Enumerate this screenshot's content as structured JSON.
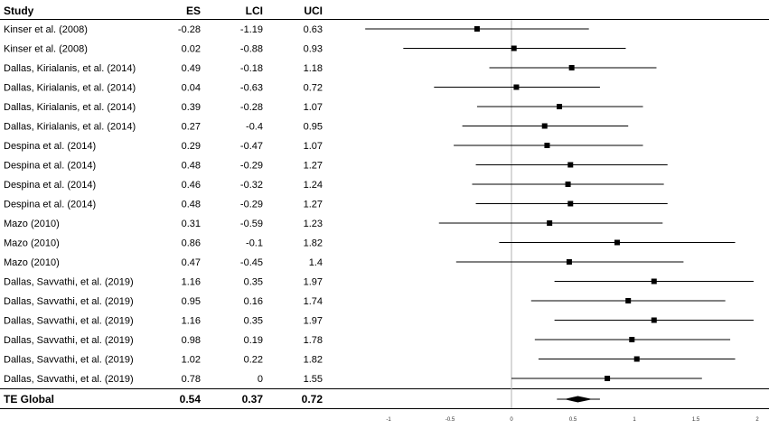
{
  "chart_data": {
    "type": "forest",
    "columns": [
      "Study",
      "ES",
      "LCI",
      "UCI"
    ],
    "rows": [
      {
        "study": "Kinser et al. (2008)",
        "es": "-0.28",
        "lci": "-1.19",
        "uci": "0.63"
      },
      {
        "study": "Kinser et al. (2008)",
        "es": "0.02",
        "lci": "-0.88",
        "uci": "0.93"
      },
      {
        "study": "Dallas, Kirialanis, et al. (2014)",
        "es": "0.49",
        "lci": "-0.18",
        "uci": "1.18"
      },
      {
        "study": "Dallas, Kirialanis, et al. (2014)",
        "es": "0.04",
        "lci": "-0.63",
        "uci": "0.72"
      },
      {
        "study": "Dallas, Kirialanis, et al. (2014)",
        "es": "0.39",
        "lci": "-0.28",
        "uci": "1.07"
      },
      {
        "study": "Dallas, Kirialanis, et al. (2014)",
        "es": "0.27",
        "lci": "-0.4",
        "uci": "0.95"
      },
      {
        "study": "Despina et al. (2014)",
        "es": "0.29",
        "lci": "-0.47",
        "uci": "1.07"
      },
      {
        "study": "Despina et al. (2014)",
        "es": "0.48",
        "lci": "-0.29",
        "uci": "1.27"
      },
      {
        "study": "Despina et al. (2014)",
        "es": "0.46",
        "lci": "-0.32",
        "uci": "1.24"
      },
      {
        "study": "Despina et al. (2014)",
        "es": "0.48",
        "lci": "-0.29",
        "uci": "1.27"
      },
      {
        "study": "Mazo (2010)",
        "es": "0.31",
        "lci": "-0.59",
        "uci": "1.23"
      },
      {
        "study": "Mazo (2010)",
        "es": "0.86",
        "lci": "-0.1",
        "uci": "1.82"
      },
      {
        "study": "Mazo (2010)",
        "es": "0.47",
        "lci": "-0.45",
        "uci": "1.4"
      },
      {
        "study": "Dallas, Savvathi, et al. (2019)",
        "es": "1.16",
        "lci": "0.35",
        "uci": "1.97"
      },
      {
        "study": "Dallas, Savvathi, et al. (2019)",
        "es": "0.95",
        "lci": "0.16",
        "uci": "1.74"
      },
      {
        "study": "Dallas, Savvathi, et al. (2019)",
        "es": "1.16",
        "lci": "0.35",
        "uci": "1.97"
      },
      {
        "study": "Dallas, Savvathi, et al. (2019)",
        "es": "0.98",
        "lci": "0.19",
        "uci": "1.78"
      },
      {
        "study": "Dallas, Savvathi, et al. (2019)",
        "es": "1.02",
        "lci": "0.22",
        "uci": "1.82"
      },
      {
        "study": "Dallas, Savvathi, et al. (2019)",
        "es": "0.78",
        "lci": "0",
        "uci": "1.55"
      }
    ],
    "total": {
      "study": "TE Global",
      "es": "0.54",
      "lci": "0.37",
      "uci": "0.72"
    },
    "x_ticks": [
      "-1",
      "-0.5",
      "0",
      "0.5",
      "1",
      "1.5",
      "2"
    ],
    "xlim": [
      -1,
      2
    ],
    "reference_line": 0,
    "colors": {
      "marker": "#000000",
      "ci_line": "#000000",
      "reference_line": "#b0b0b0",
      "rule": "#000000"
    }
  }
}
